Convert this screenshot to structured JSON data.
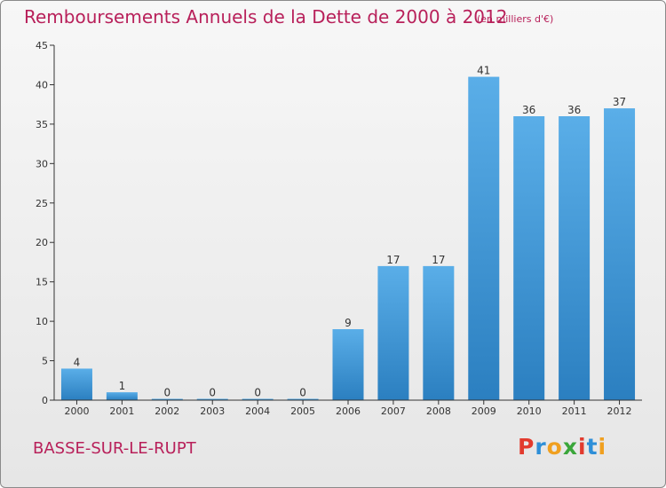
{
  "title": "Remboursements Annuels de la Dette de 2000 à 2012",
  "subtitle": "(en milliers d'€)",
  "commune": "BASSE-SUR-LE-RUPT",
  "logo": {
    "text": "Proxiti",
    "letters": [
      {
        "ch": "P",
        "color": "#e23b2e"
      },
      {
        "ch": "r",
        "color": "#2e8fd8"
      },
      {
        "ch": "o",
        "color": "#f0a020"
      },
      {
        "ch": "x",
        "color": "#3aa63a"
      },
      {
        "ch": "i",
        "color": "#e23b2e"
      },
      {
        "ch": "t",
        "color": "#2e8fd8"
      },
      {
        "ch": "i",
        "color": "#f0a020"
      }
    ]
  },
  "colors": {
    "title": "#b8205a",
    "bar_top": "#5aaee8",
    "bar_bottom": "#2b7fc0",
    "axis": "#333333",
    "gridline": "#cccccc"
  },
  "chart_data": {
    "type": "bar",
    "title": "Remboursements Annuels de la Dette de 2000 à 2012",
    "subtitle": "(en milliers d'€)",
    "categories": [
      "2000",
      "2001",
      "2002",
      "2003",
      "2004",
      "2005",
      "2006",
      "2007",
      "2008",
      "2009",
      "2010",
      "2011",
      "2012"
    ],
    "values": [
      4,
      1,
      0,
      0,
      0,
      0,
      9,
      17,
      17,
      41,
      36,
      36,
      37
    ],
    "ylim": [
      0,
      45
    ],
    "yticks": [
      0,
      5,
      10,
      15,
      20,
      25,
      30,
      35,
      40,
      45
    ],
    "grid": false,
    "xlabel": "",
    "ylabel": ""
  }
}
